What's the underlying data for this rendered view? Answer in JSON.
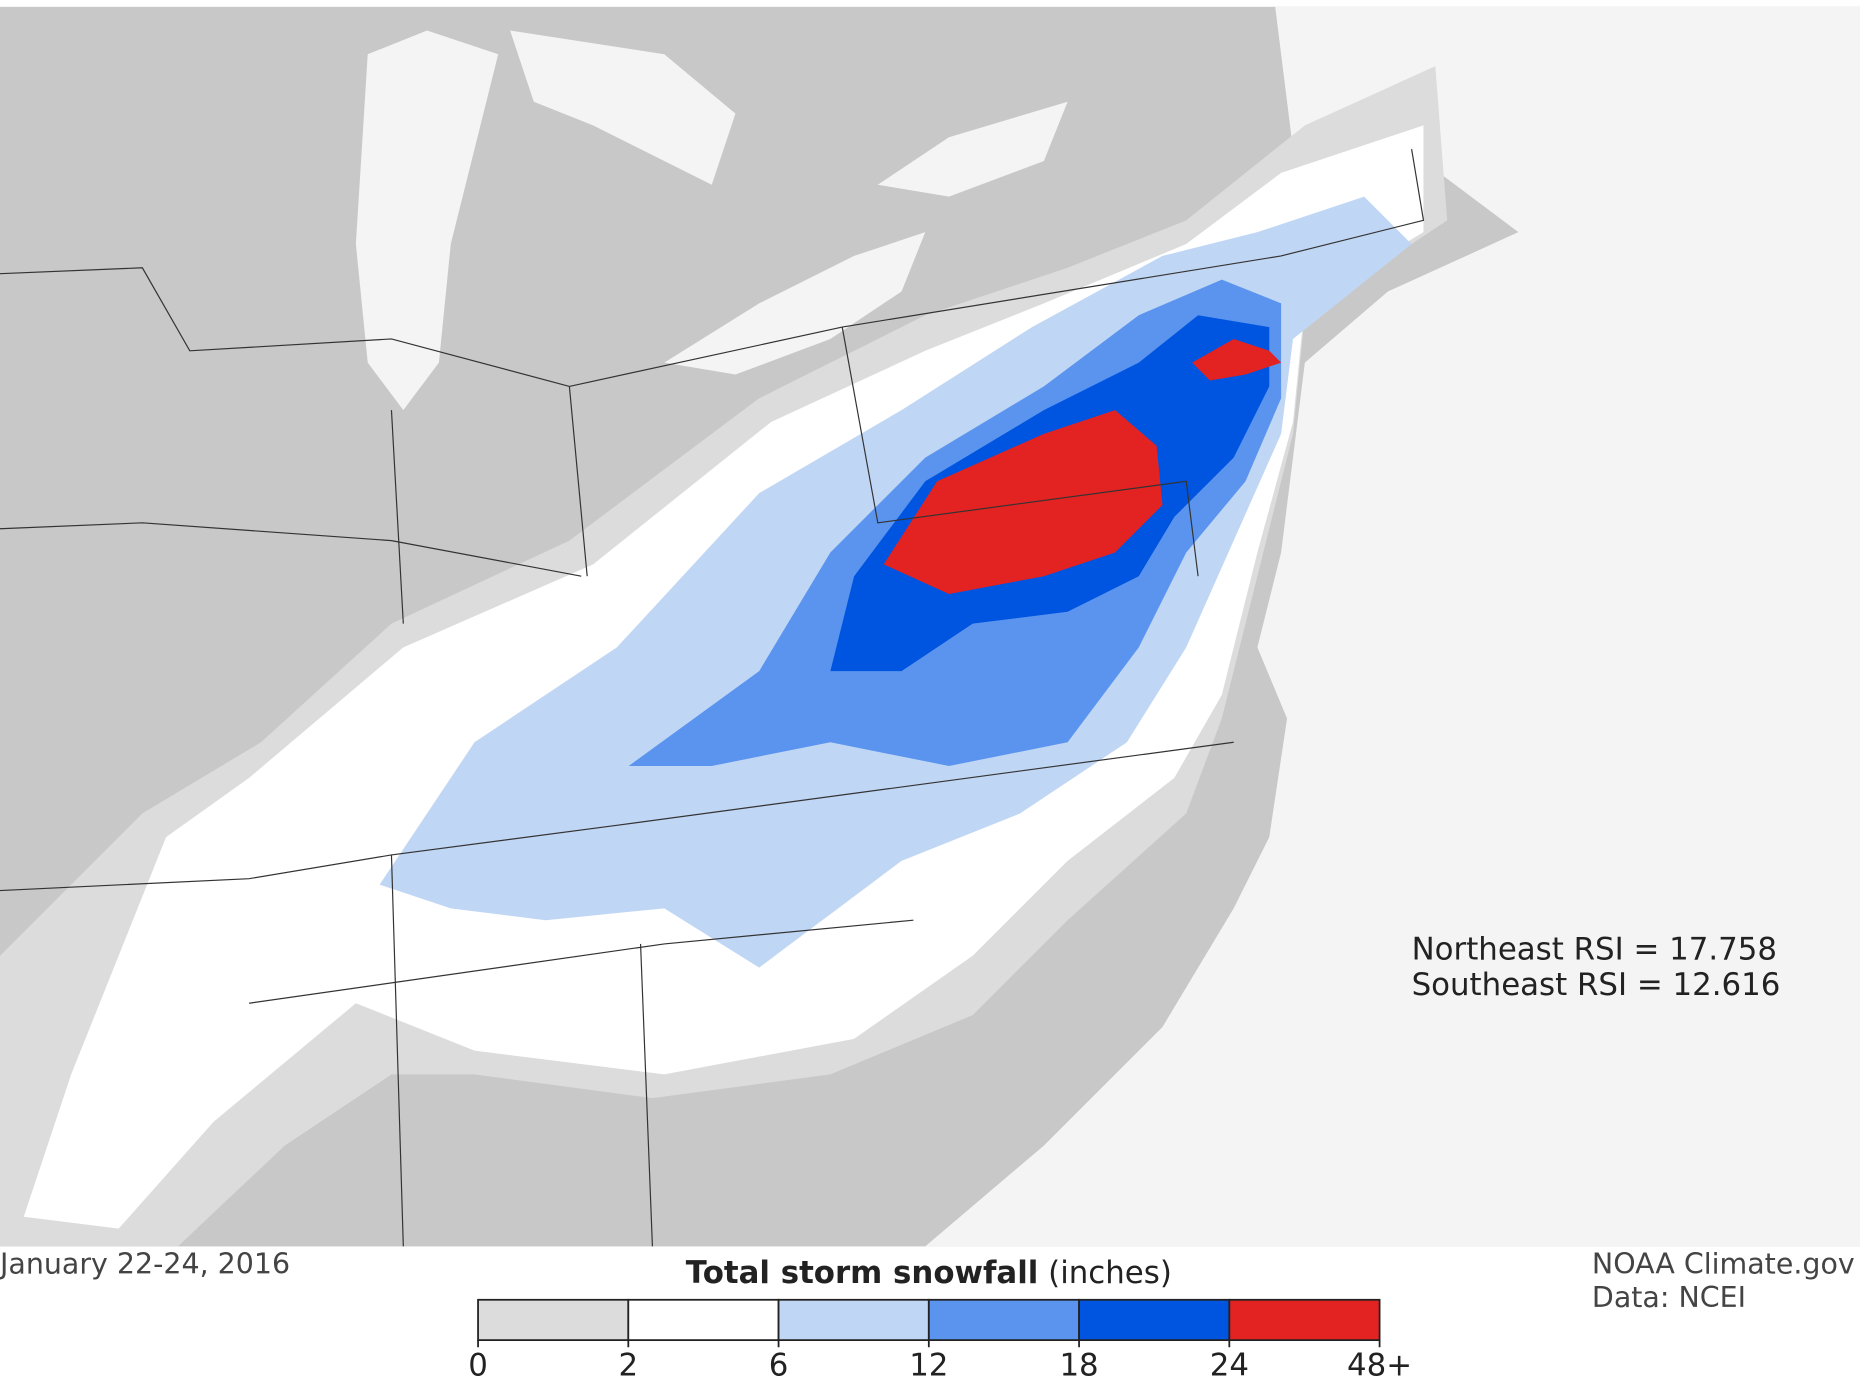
{
  "map": {
    "date": "January 22-24, 2016",
    "annotations": [
      "Northeast RSI = 17.758",
      "Southeast RSI = 12.616"
    ],
    "credit": "NOAA Climate.gov",
    "source": "Data: NCEI"
  },
  "legend": {
    "title": "Total storm snowfall",
    "units": "(inches)",
    "ticks": [
      0,
      2,
      6,
      12,
      18,
      24,
      {
        "value": 48,
        "label": "48+"
      }
    ],
    "colors": [
      "#dcdcdc",
      "#ffffff",
      "#c0d6f5",
      "#5b94ee",
      "#0055e0",
      "#e32222"
    ]
  }
}
